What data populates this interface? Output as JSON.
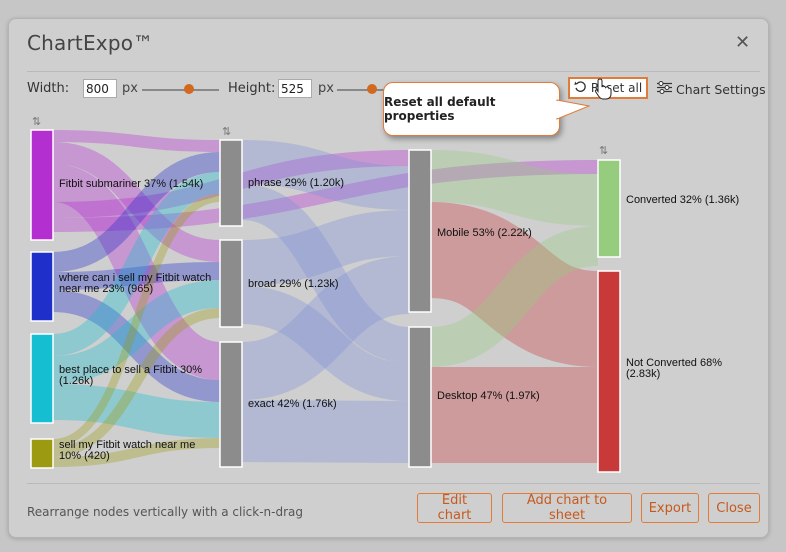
{
  "dialog": {
    "title": "ChartExpo™",
    "close_glyph": "✕"
  },
  "controls": {
    "width_label": "Width:",
    "width_value": "800",
    "width_unit": "px",
    "height_label": "Height:",
    "height_value": "525",
    "height_unit": "px",
    "reset_label": "Reset all",
    "settings_label": "Chart Settings",
    "accent_color": "#e07b39"
  },
  "tooltip": {
    "text": "Reset all default properties"
  },
  "icons": {
    "reset": "reset-icon",
    "settings": "sliders-icon",
    "cursor": "hand-pointer-icon",
    "sort": "sort-arrows-icon"
  },
  "chart_data": {
    "type": "sankey",
    "nodes": [
      {
        "id": "kw1",
        "label": "Fitbit submariner 37% (1.54k)",
        "column": 0,
        "color": "#b42fd0"
      },
      {
        "id": "kw2",
        "label": "where can i sell my Fitbit watch near me 23% (965)",
        "column": 0,
        "color": "#1f2fc9"
      },
      {
        "id": "kw3",
        "label": "best place to sell a Fitbit 30% (1.26k)",
        "column": 0,
        "color": "#16bed2"
      },
      {
        "id": "kw4",
        "label": "sell my Fitbit watch near me 10% (420)",
        "column": 0,
        "color": "#9c9a10"
      },
      {
        "id": "phrase",
        "label": "phrase 29% (1.20k)",
        "column": 1,
        "color": "#8c8c8c"
      },
      {
        "id": "broad",
        "label": "broad 29% (1.23k)",
        "column": 1,
        "color": "#8c8c8c"
      },
      {
        "id": "exact",
        "label": "exact 42% (1.76k)",
        "column": 1,
        "color": "#8c8c8c"
      },
      {
        "id": "mobile",
        "label": "Mobile 53% (2.22k)",
        "column": 2,
        "color": "#8c8c8c"
      },
      {
        "id": "desktop",
        "label": "Desktop 47% (1.97k)",
        "column": 2,
        "color": "#8c8c8c"
      },
      {
        "id": "conv",
        "label": "Converted 32% (1.36k)",
        "column": 3,
        "color": "#96cc7e"
      },
      {
        "id": "notconv",
        "label": "Not Converted 68% (2.83k)",
        "column": 3,
        "color": "#c83a3a"
      }
    ]
  },
  "footer": {
    "hint": "Rearrange nodes vertically with a click-n-drag",
    "edit_label": "Edit chart",
    "add_label": "Add chart to sheet",
    "export_label": "Export",
    "close_label": "Close"
  }
}
